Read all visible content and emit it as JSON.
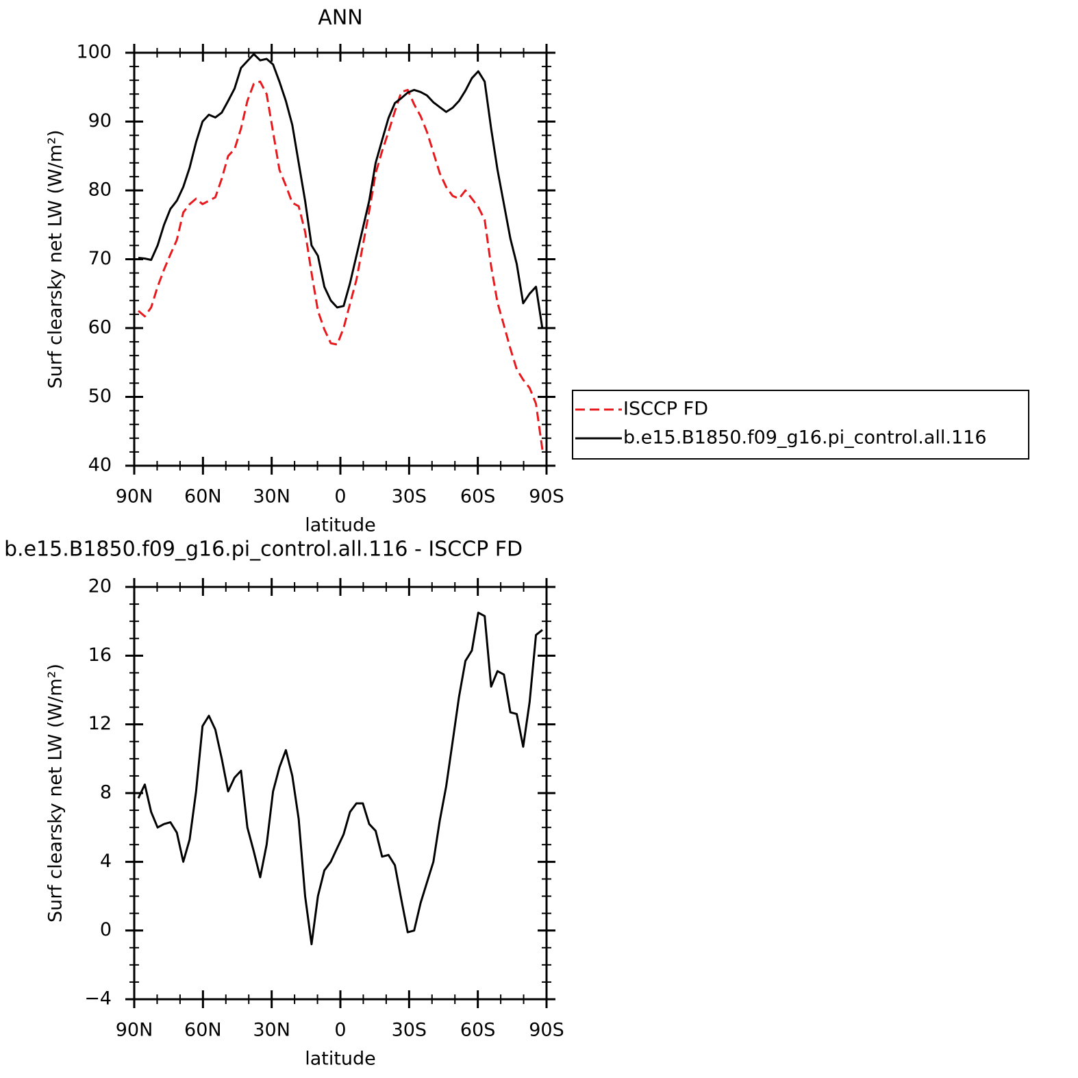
{
  "chart_data": [
    {
      "type": "line",
      "title": "ANN",
      "xlabel": "latitude",
      "ylabel": "Surf clearsky net LW (W/m²)",
      "x": [
        88.2,
        85.4,
        82.6,
        79.8,
        77,
        74.2,
        71.4,
        68.6,
        65.8,
        63,
        60.2,
        57.4,
        54.6,
        51.8,
        49,
        46.2,
        43.4,
        40.6,
        37.8,
        35,
        32.2,
        29.4,
        26.6,
        23.8,
        21,
        18.2,
        15.4,
        12.6,
        9.8,
        7,
        4.2,
        1.4,
        -1.4,
        -4.2,
        -7,
        -9.8,
        -12.6,
        -15.4,
        -18.2,
        -21,
        -23.8,
        -26.6,
        -29.4,
        -32.2,
        -35,
        -37.8,
        -40.6,
        -43.4,
        -46.2,
        -49,
        -51.8,
        -54.6,
        -57.4,
        -60.2,
        -63,
        -65.8,
        -68.6,
        -71.4,
        -74.2,
        -77,
        -79.8,
        -82.6,
        -85.4,
        -88.2
      ],
      "series": [
        {
          "name": "ISCCP FD",
          "color": "#e8191c",
          "dash": true,
          "values": [
            62.5,
            61.7,
            63,
            66,
            68.5,
            70.7,
            72.8,
            76.8,
            78,
            78.8,
            78,
            78.5,
            79,
            81.7,
            85,
            86,
            89,
            93,
            95.5,
            95.8,
            94,
            88.5,
            83,
            80.7,
            78.2,
            77.7,
            74,
            68,
            62.5,
            59.8,
            57.8,
            57.6,
            60,
            63.5,
            67,
            72,
            77,
            82.5,
            85.7,
            88.5,
            91.5,
            94.3,
            94.6,
            92.5,
            90.8,
            88.5,
            85.5,
            82.5,
            80.5,
            79.2,
            78.8,
            80,
            78.8,
            77.6,
            75.7,
            69,
            63.7,
            60.4,
            57,
            54,
            52.5,
            51.3,
            49,
            42.3
          ]
        },
        {
          "name": "b.e15.B1850.f09_g16.pi_control.all.116",
          "color": "#000000",
          "dash": false,
          "values": [
            70.2,
            70.1,
            69.9,
            72,
            75,
            77.3,
            78.5,
            80.5,
            83.3,
            87,
            90,
            91,
            90.6,
            91.3,
            93,
            94.8,
            97.8,
            98.8,
            99.8,
            98.9,
            99.1,
            98.3,
            95.8,
            93,
            89.5,
            84,
            78.5,
            72,
            70.5,
            66,
            64,
            63,
            63.2,
            66.5,
            70.5,
            74.5,
            78.5,
            84,
            87.3,
            90.5,
            92.7,
            93.4,
            94.2,
            94.6,
            94.3,
            93.8,
            92.8,
            92.1,
            91.4,
            92,
            93,
            94.5,
            96.3,
            97.3,
            95.8,
            89,
            83,
            78,
            73,
            69.3,
            63.6,
            65,
            66,
            59.9
          ]
        }
      ],
      "xlim": [
        90,
        -90
      ],
      "xticks": [
        {
          "value": 90,
          "label": "90N"
        },
        {
          "value": 60,
          "label": "60N"
        },
        {
          "value": 30,
          "label": "30N"
        },
        0,
        {
          "value": -30,
          "label": "30S"
        },
        {
          "value": -60,
          "label": "60S"
        },
        {
          "value": -90,
          "label": "90S"
        }
      ],
      "ylim": [
        40,
        100
      ],
      "yticks": [
        40,
        50,
        60,
        70,
        80,
        90,
        100
      ],
      "legend": "right"
    },
    {
      "type": "line",
      "title": "b.e15.B1850.f09_g16.pi_control.all.116 - ISCCP FD",
      "xlabel": "latitude",
      "ylabel": "Surf clearsky net LW (W/m²)",
      "x": [
        88.2,
        85.4,
        82.6,
        79.8,
        77,
        74.2,
        71.4,
        68.6,
        65.8,
        63,
        60.2,
        57.4,
        54.6,
        51.8,
        49,
        46.2,
        43.4,
        40.6,
        37.8,
        35,
        32.2,
        29.4,
        26.6,
        23.8,
        21,
        18.2,
        15.4,
        12.6,
        9.8,
        7,
        4.2,
        1.4,
        -1.4,
        -4.2,
        -7,
        -9.8,
        -12.6,
        -15.4,
        -18.2,
        -21,
        -23.8,
        -26.6,
        -29.4,
        -32.2,
        -35,
        -37.8,
        -40.6,
        -43.4,
        -46.2,
        -49,
        -51.8,
        -54.6,
        -57.4,
        -60.2,
        -63,
        -65.8,
        -68.6,
        -71.4,
        -74.2,
        -77,
        -79.8,
        -82.6,
        -85.4,
        -88.2
      ],
      "series": [
        {
          "color": "#000000",
          "values": [
            7.7,
            8.5,
            6.9,
            6.0,
            6.2,
            6.3,
            5.7,
            4.0,
            5.3,
            8.1,
            11.9,
            12.5,
            11.7,
            10.0,
            8.1,
            8.9,
            9.3,
            6.0,
            4.6,
            3.1,
            5.0,
            8.1,
            9.5,
            10.5,
            9.0,
            6.5,
            2.0,
            -0.8,
            2.0,
            3.5,
            4.0,
            4.8,
            5.6,
            6.9,
            7.4,
            7.4,
            6.2,
            5.8,
            4.3,
            4.4,
            3.8,
            1.8,
            -0.1,
            0.0,
            1.6,
            2.8,
            4.0,
            6.4,
            8.4,
            11.0,
            13.6,
            15.7,
            16.3,
            18.5,
            18.3,
            14.2,
            15.1,
            14.9,
            12.7,
            12.6,
            10.7,
            13.3,
            17.2,
            17.5
          ]
        }
      ],
      "xlim": [
        90,
        -90
      ],
      "xticks": [
        {
          "value": 90,
          "label": "90N"
        },
        {
          "value": 60,
          "label": "60N"
        },
        {
          "value": 30,
          "label": "30N"
        },
        0,
        {
          "value": -30,
          "label": "30S"
        },
        {
          "value": -60,
          "label": "60S"
        },
        {
          "value": -90,
          "label": "90S"
        }
      ],
      "ylim": [
        -4,
        20
      ],
      "yticks": [
        {
          "value": -4,
          "label": "−4"
        },
        0,
        4,
        8,
        12,
        16,
        20
      ]
    }
  ]
}
